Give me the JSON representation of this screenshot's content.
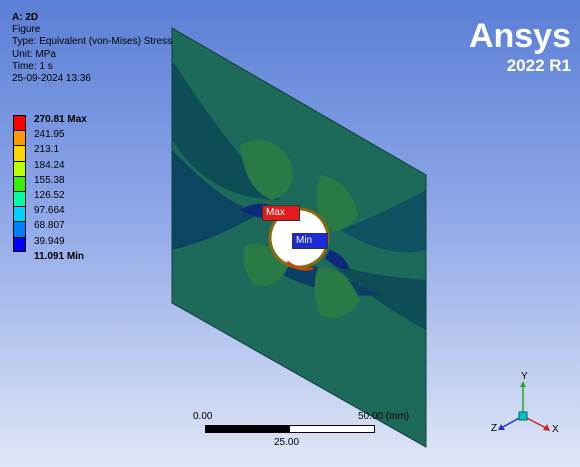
{
  "header": {
    "title": "A: 2D",
    "figure": "Figure",
    "type": "Type: Equivalent (von-Mises) Stress",
    "unit": "Unit: MPa",
    "time": "Time: 1 s",
    "timestamp": "25-09-2024 13:36"
  },
  "legend": {
    "labels": [
      "270.81 Max",
      "241.95",
      "213.1",
      "184.24",
      "155.38",
      "126.52",
      "97.664",
      "68.807",
      "39.949",
      "11.091 Min"
    ],
    "colors": [
      "#ff0000",
      "#ff9a00",
      "#ffd200",
      "#bcff00",
      "#37ee00",
      "#00ffa0",
      "#00d2ff",
      "#0080ff",
      "#0000ff"
    ]
  },
  "brand": {
    "logo": "Ansys",
    "version": "2022 R1"
  },
  "probes": {
    "max_label": "Max",
    "min_label": "Min"
  },
  "scale": {
    "start": "0.00",
    "end": "50.00 (mm)",
    "mid": "25.00"
  },
  "triad": {
    "y": "Y",
    "z": "Z",
    "x": "X"
  }
}
